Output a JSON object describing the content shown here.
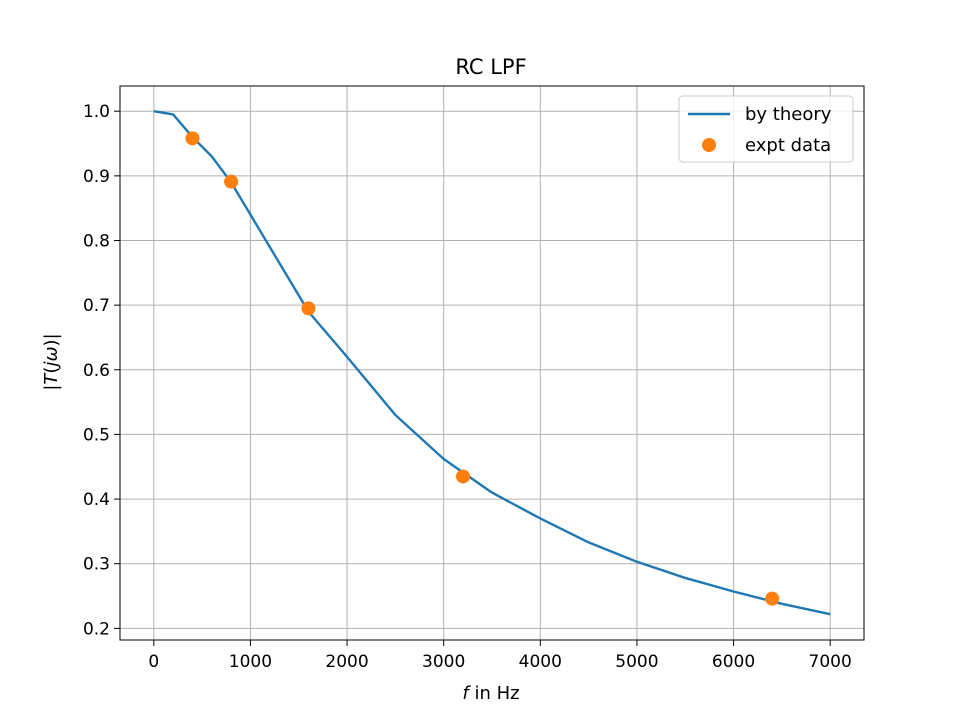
{
  "chart_data": {
    "type": "line",
    "title": "RC LPF",
    "xlabel": {
      "italic": "f",
      "rest": " in Hz"
    },
    "ylabel": {
      "pre": "|",
      "italic": "T",
      "mid": "(",
      "italic2": "jω",
      "post": ")|"
    },
    "xlim": [
      -350,
      7350
    ],
    "ylim": [
      0.182,
      1.039
    ],
    "x_ticks": [
      0,
      1000,
      2000,
      3000,
      4000,
      5000,
      6000,
      7000
    ],
    "x_tick_labels": [
      "0",
      "1000",
      "2000",
      "3000",
      "4000",
      "5000",
      "6000",
      "7000"
    ],
    "y_ticks": [
      0.2,
      0.3,
      0.4,
      0.5,
      0.6,
      0.7,
      0.8,
      0.9,
      1.0
    ],
    "y_tick_labels": [
      "0.2",
      "0.3",
      "0.4",
      "0.5",
      "0.6",
      "0.7",
      "0.8",
      "0.9",
      "1.0"
    ],
    "grid": true,
    "legend_position": "top-right",
    "series": [
      {
        "name": "by theory",
        "kind": "line",
        "color": "#1f77b4",
        "x": [
          0,
          200,
          400,
          600,
          800,
          1000,
          1200,
          1400,
          1600,
          1800,
          2000,
          2500,
          3000,
          3500,
          4000,
          4500,
          5000,
          5500,
          6000,
          6500,
          7000
        ],
        "y": [
          1.0,
          0.995,
          0.96,
          0.93,
          0.89,
          0.84,
          0.79,
          0.74,
          0.69,
          0.655,
          0.62,
          0.53,
          0.462,
          0.41,
          0.37,
          0.333,
          0.303,
          0.278,
          0.257,
          0.238,
          0.222
        ]
      },
      {
        "name": "expt data",
        "kind": "scatter",
        "color": "#ff7f0e",
        "x": [
          400,
          800,
          1600,
          3200,
          6400
        ],
        "y": [
          0.958,
          0.891,
          0.695,
          0.435,
          0.246
        ]
      }
    ]
  }
}
